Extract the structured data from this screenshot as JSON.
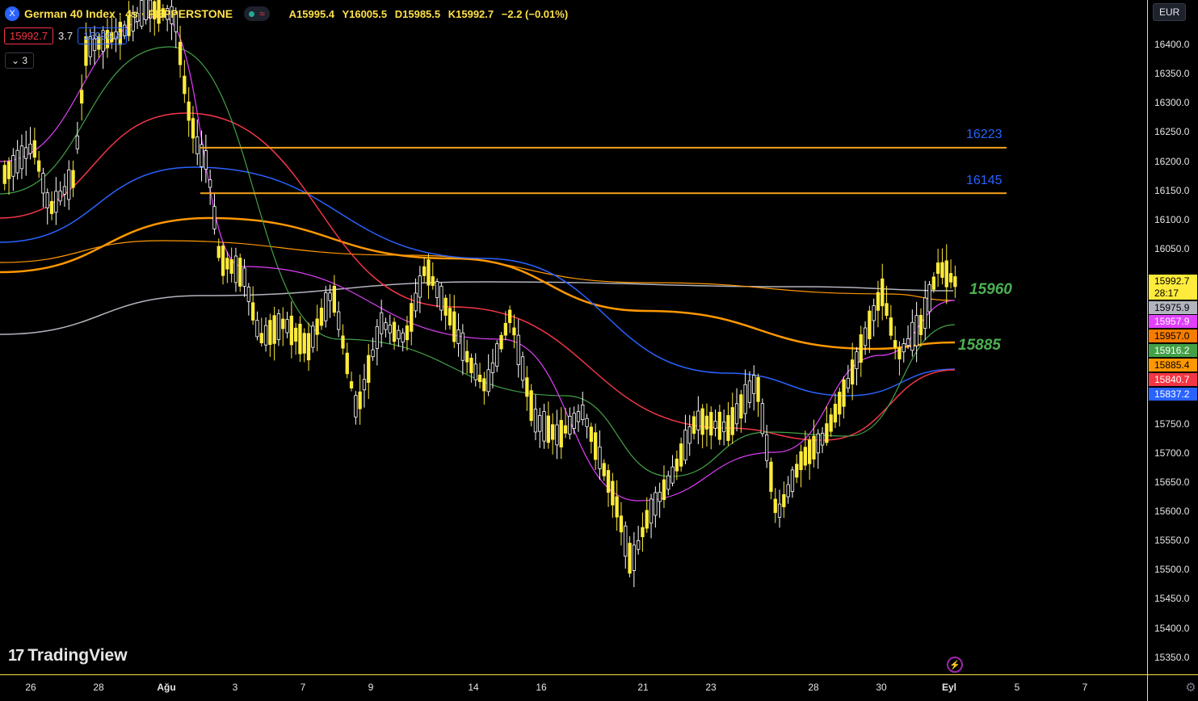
{
  "header": {
    "symbol_icon": "X",
    "title": "German 40 Index · 4s · PEPPERSTONE",
    "status_wave": "≈",
    "ohlc": {
      "open": "A15995.4",
      "high": "Y16005.5",
      "low": "D15985.5",
      "close": "K15992.7",
      "change": "−2.2 (−0.01%)"
    },
    "bid": "15992.7",
    "spread": "3.7",
    "ask": "15996.4",
    "indicators_toggle": "⌄ 3",
    "currency": "EUR"
  },
  "price_axis": [
    "16400.0",
    "16350.0",
    "16300.0",
    "16250.0",
    "16200.0",
    "16150.0",
    "16100.0",
    "16050.0",
    "15750.0",
    "15700.0",
    "15650.0",
    "15600.0",
    "15550.0",
    "15500.0",
    "15450.0",
    "15400.0",
    "15350.0"
  ],
  "price_labels": [
    {
      "text": "15992.7",
      "sub": "28:17",
      "bg": "#ffeb3b",
      "fg": "#000000"
    },
    {
      "text": "15975.9",
      "bg": "#b2b5be",
      "fg": "#000000"
    },
    {
      "text": "15957.9",
      "bg": "#e040fb",
      "fg": "#ffffff"
    },
    {
      "text": "15957.0",
      "bg": "#f57c00",
      "fg": "#000000"
    },
    {
      "text": "15916.2",
      "bg": "#43a047",
      "fg": "#ffffff"
    },
    {
      "text": "15885.4",
      "bg": "#ff9800",
      "fg": "#000000"
    },
    {
      "text": "15840.7",
      "bg": "#f23645",
      "fg": "#ffffff"
    },
    {
      "text": "15837.2",
      "bg": "#2962ff",
      "fg": "#ffffff"
    }
  ],
  "time_axis": [
    "26",
    "28",
    "Ağu",
    "3",
    "7",
    "9",
    "14",
    "16",
    "21",
    "23",
    "28",
    "30",
    "Eyl",
    "5",
    "7"
  ],
  "levels": [
    {
      "value": "16223",
      "label": "16223"
    },
    {
      "value": "16145",
      "label": "16145"
    }
  ],
  "annotations": [
    "15960",
    "15885"
  ],
  "logo_text": "TradingView",
  "colors": {
    "candle_up": "#ffeb3b",
    "candle_down": "#ffffff",
    "level_line": "#f7a21b",
    "axis_line": "#fde047",
    "ema_magenta": "#e040fb",
    "ema_green": "#43a047",
    "ema_red": "#f23645",
    "ema_blue": "#2962ff",
    "ema_orange": "#ff9800",
    "ma_gray": "#b2b5be"
  }
}
